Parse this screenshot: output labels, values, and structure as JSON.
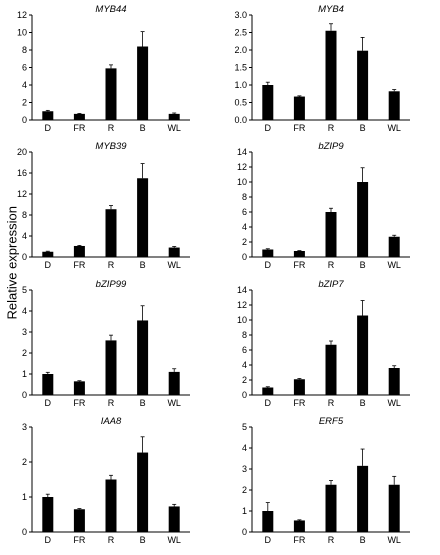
{
  "figure": {
    "ylabel": "Relative expression"
  },
  "chart_data": [
    {
      "type": "bar",
      "title": "MYB44",
      "categories": [
        "D",
        "FR",
        "R",
        "B",
        "WL"
      ],
      "values": [
        1.0,
        0.7,
        5.9,
        8.4,
        0.7
      ],
      "errors": [
        0.1,
        0.05,
        0.4,
        1.7,
        0.1
      ],
      "ylim": [
        0,
        12
      ],
      "yticks": [
        0,
        2,
        4,
        6,
        8,
        10,
        12
      ]
    },
    {
      "type": "bar",
      "title": "MYB4",
      "categories": [
        "D",
        "FR",
        "R",
        "B",
        "WL"
      ],
      "values": [
        1.0,
        0.67,
        2.55,
        1.98,
        0.82
      ],
      "errors": [
        0.08,
        0.02,
        0.2,
        0.38,
        0.05
      ],
      "ylim": [
        0,
        3.0
      ],
      "yticks": [
        0,
        0.5,
        1.0,
        1.5,
        2.0,
        2.5,
        3.0
      ]
    },
    {
      "type": "bar",
      "title": "MYB39",
      "categories": [
        "D",
        "FR",
        "R",
        "B",
        "WL"
      ],
      "values": [
        1.0,
        2.1,
        9.1,
        15.0,
        1.8
      ],
      "errors": [
        0.1,
        0.1,
        0.7,
        2.8,
        0.2
      ],
      "ylim": [
        0,
        20
      ],
      "yticks": [
        0,
        4,
        8,
        12,
        16,
        20
      ]
    },
    {
      "type": "bar",
      "title": "bZIP9",
      "categories": [
        "D",
        "FR",
        "R",
        "B",
        "WL"
      ],
      "values": [
        1.0,
        0.8,
        6.0,
        10.0,
        2.7
      ],
      "errors": [
        0.1,
        0.05,
        0.5,
        1.9,
        0.2
      ],
      "ylim": [
        0,
        14
      ],
      "yticks": [
        0,
        2,
        4,
        6,
        8,
        10,
        12,
        14
      ]
    },
    {
      "type": "bar",
      "title": "bZIP99",
      "categories": [
        "D",
        "FR",
        "R",
        "B",
        "WL"
      ],
      "values": [
        1.0,
        0.65,
        2.6,
        3.55,
        1.1
      ],
      "errors": [
        0.08,
        0.03,
        0.25,
        0.7,
        0.15
      ],
      "ylim": [
        0,
        5
      ],
      "yticks": [
        0,
        1,
        2,
        3,
        4,
        5
      ]
    },
    {
      "type": "bar",
      "title": "bZIP7",
      "categories": [
        "D",
        "FR",
        "R",
        "B",
        "WL"
      ],
      "values": [
        1.0,
        2.1,
        6.7,
        10.6,
        3.6
      ],
      "errors": [
        0.1,
        0.1,
        0.5,
        2.0,
        0.3
      ],
      "ylim": [
        0,
        14
      ],
      "yticks": [
        0,
        2,
        4,
        6,
        8,
        10,
        12,
        14
      ]
    },
    {
      "type": "bar",
      "title": "IAA8",
      "categories": [
        "D",
        "FR",
        "R",
        "B",
        "WL"
      ],
      "values": [
        1.0,
        0.65,
        1.5,
        2.27,
        0.73
      ],
      "errors": [
        0.08,
        0.02,
        0.12,
        0.45,
        0.06
      ],
      "ylim": [
        0,
        3
      ],
      "yticks": [
        0,
        1,
        2,
        3
      ]
    },
    {
      "type": "bar",
      "title": "ERF5",
      "categories": [
        "D",
        "FR",
        "R",
        "B",
        "WL"
      ],
      "values": [
        1.0,
        0.55,
        2.25,
        3.15,
        2.25
      ],
      "errors": [
        0.4,
        0.03,
        0.2,
        0.8,
        0.4
      ],
      "ylim": [
        0,
        5
      ],
      "yticks": [
        0,
        1,
        2,
        3,
        4,
        5
      ]
    }
  ]
}
